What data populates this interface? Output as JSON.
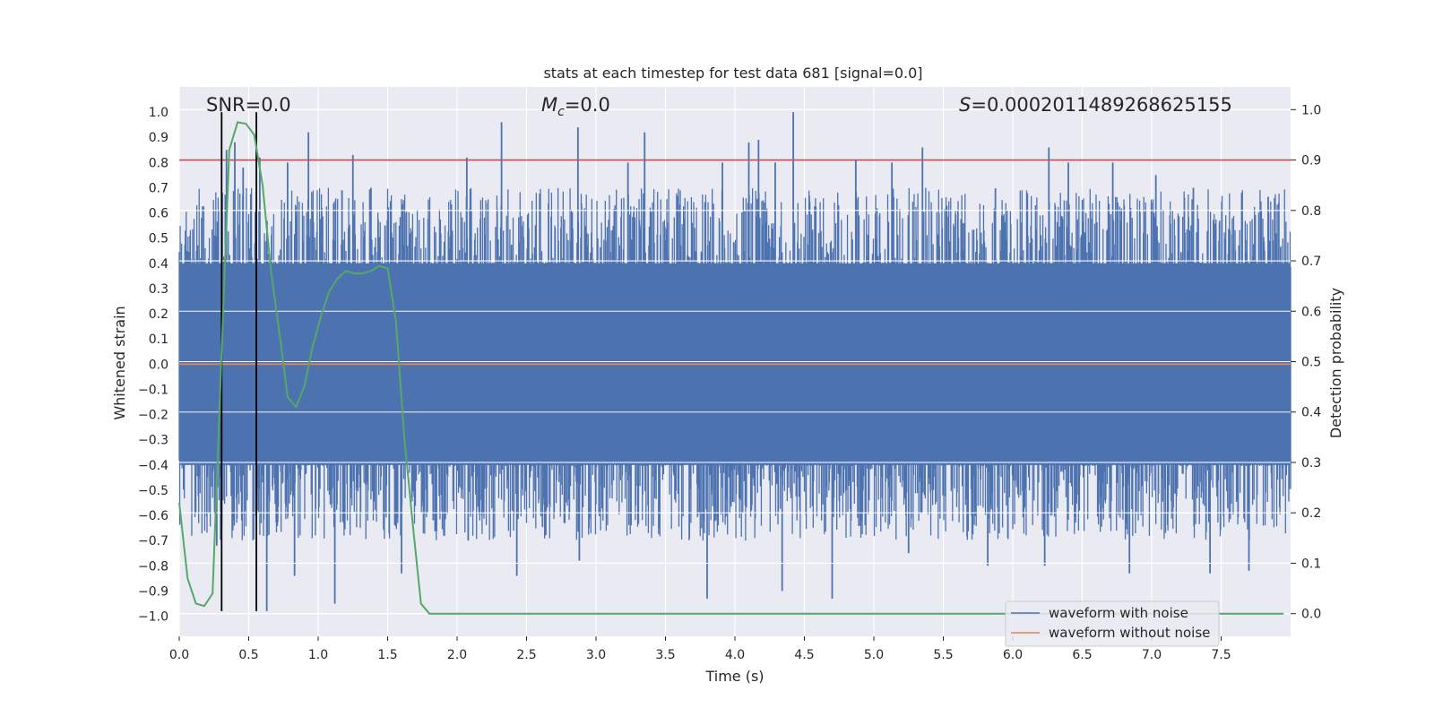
{
  "chart_data": {
    "type": "line",
    "title": "stats at each timestep for test data 681 [signal=0.0]",
    "xlabel": "Time (s)",
    "ylabel_left": "Whitened strain",
    "ylabel_right": "Detection probability",
    "xlim": [
      0.0,
      8.0
    ],
    "ylim_left": [
      -1.08,
      1.1
    ],
    "ylim_right": [
      -0.045,
      1.045
    ],
    "x_ticks": [
      0.0,
      0.5,
      1.0,
      1.5,
      2.0,
      2.5,
      3.0,
      3.5,
      4.0,
      4.5,
      5.0,
      5.5,
      6.0,
      6.5,
      7.0,
      7.5
    ],
    "x_tick_labels": [
      "0.0",
      "0.5",
      "1.0",
      "1.5",
      "2.0",
      "2.5",
      "3.0",
      "3.5",
      "4.0",
      "4.5",
      "5.0",
      "5.5",
      "6.0",
      "6.5",
      "7.0",
      "7.5"
    ],
    "y_ticks_left": [
      -1.0,
      -0.9,
      -0.8,
      -0.7,
      -0.6,
      -0.5,
      -0.4,
      -0.3,
      -0.2,
      -0.1,
      0.0,
      0.1,
      0.2,
      0.3,
      0.4,
      0.5,
      0.6,
      0.7,
      0.8,
      0.9,
      1.0
    ],
    "y_tick_labels_left": [
      "−1.0",
      "−0.9",
      "−0.8",
      "−0.7",
      "−0.6",
      "−0.5",
      "−0.4",
      "−0.3",
      "−0.2",
      "−0.1",
      "0.0",
      "0.1",
      "0.2",
      "0.3",
      "0.4",
      "0.5",
      "0.6",
      "0.7",
      "0.8",
      "0.9",
      "1.0"
    ],
    "y_ticks_right": [
      0.0,
      0.1,
      0.2,
      0.3,
      0.4,
      0.5,
      0.6,
      0.7,
      0.8,
      0.9,
      1.0
    ],
    "y_tick_labels_right": [
      "0.0",
      "0.1",
      "0.2",
      "0.3",
      "0.4",
      "0.5",
      "0.6",
      "0.7",
      "0.8",
      "0.9",
      "1.0"
    ],
    "annotations": {
      "snr": "SNR=0.0",
      "mc_symbol": "M",
      "mc_subscript": "c",
      "mc_value": "=0.0",
      "s_symbol": "S",
      "s_value": "=0.0002011489268625155"
    },
    "series": [
      {
        "name": "waveform with noise",
        "color": "#4c72b0",
        "description": "dense noise; envelope approx ±0.4 with spikes to ±1.0",
        "envelope_abs": 0.4,
        "spikes": [
          {
            "x": 0.31,
            "y": 0.68
          },
          {
            "x": 0.34,
            "y": 0.85
          },
          {
            "x": 0.4,
            "y": 0.88
          },
          {
            "x": 0.46,
            "y": 0.78
          },
          {
            "x": 0.58,
            "y": 0.82
          },
          {
            "x": 0.78,
            "y": 0.8
          },
          {
            "x": 0.93,
            "y": 0.92
          },
          {
            "x": 1.25,
            "y": 0.83
          },
          {
            "x": 1.38,
            "y": 0.7
          },
          {
            "x": 2.07,
            "y": 0.82
          },
          {
            "x": 2.32,
            "y": 0.96
          },
          {
            "x": 2.87,
            "y": 0.94
          },
          {
            "x": 3.23,
            "y": 0.8
          },
          {
            "x": 3.35,
            "y": 0.92
          },
          {
            "x": 3.91,
            "y": 0.8
          },
          {
            "x": 4.1,
            "y": 0.88
          },
          {
            "x": 4.17,
            "y": 0.89
          },
          {
            "x": 4.29,
            "y": 0.8
          },
          {
            "x": 4.42,
            "y": 1.0
          },
          {
            "x": 4.87,
            "y": 0.81
          },
          {
            "x": 5.13,
            "y": 0.8
          },
          {
            "x": 5.35,
            "y": 0.86
          },
          {
            "x": 6.26,
            "y": 0.86
          },
          {
            "x": 6.4,
            "y": 0.8
          },
          {
            "x": 6.72,
            "y": 0.8
          },
          {
            "x": 7.03,
            "y": 0.75
          },
          {
            "x": 7.3,
            "y": 0.7
          },
          {
            "x": 0.27,
            "y": -0.72
          },
          {
            "x": 0.45,
            "y": -0.62
          },
          {
            "x": 0.63,
            "y": -0.98
          },
          {
            "x": 0.83,
            "y": -0.84
          },
          {
            "x": 1.12,
            "y": -0.95
          },
          {
            "x": 1.6,
            "y": -0.83
          },
          {
            "x": 2.08,
            "y": -0.7
          },
          {
            "x": 2.43,
            "y": -0.84
          },
          {
            "x": 2.88,
            "y": -0.78
          },
          {
            "x": 3.8,
            "y": -0.93
          },
          {
            "x": 4.34,
            "y": -0.9
          },
          {
            "x": 4.7,
            "y": -0.93
          },
          {
            "x": 5.25,
            "y": -0.75
          },
          {
            "x": 5.82,
            "y": -0.8
          },
          {
            "x": 6.23,
            "y": -0.8
          },
          {
            "x": 6.84,
            "y": -0.83
          },
          {
            "x": 7.42,
            "y": -0.83
          },
          {
            "x": 7.7,
            "y": -0.82
          }
        ]
      },
      {
        "name": "waveform without noise",
        "color": "#dd8452",
        "x": [
          0.0,
          8.0
        ],
        "y": [
          0.0,
          0.0
        ]
      },
      {
        "name": "detection probability",
        "color": "#55a868",
        "axis": "right",
        "x": [
          0.0,
          0.06,
          0.12,
          0.18,
          0.24,
          0.3,
          0.36,
          0.42,
          0.48,
          0.54,
          0.6,
          0.66,
          0.72,
          0.78,
          0.84,
          0.9,
          0.96,
          1.02,
          1.08,
          1.14,
          1.2,
          1.26,
          1.32,
          1.38,
          1.44,
          1.5,
          1.56,
          1.62,
          1.68,
          1.74,
          1.8,
          7.95
        ],
        "y": [
          0.22,
          0.07,
          0.02,
          0.015,
          0.04,
          0.48,
          0.92,
          0.975,
          0.972,
          0.95,
          0.85,
          0.68,
          0.56,
          0.43,
          0.41,
          0.45,
          0.53,
          0.59,
          0.64,
          0.665,
          0.68,
          0.675,
          0.675,
          0.68,
          0.69,
          0.685,
          0.58,
          0.35,
          0.18,
          0.02,
          0.0,
          0.0
        ]
      }
    ],
    "horizontal_lines": [
      {
        "name": "threshold",
        "color": "#c44e52",
        "axis": "right",
        "y": 0.9
      }
    ],
    "vertical_lines": [
      {
        "name": "marker-1",
        "color": "#000000",
        "x": 0.305,
        "y_from": -0.98,
        "y_to": 1.0
      },
      {
        "name": "marker-2",
        "color": "#000000",
        "x": 0.555,
        "y_from": -0.98,
        "y_to": 1.0
      }
    ],
    "legend": {
      "position": "lower-right",
      "entries": [
        {
          "label": "waveform with noise",
          "color": "#4c72b0"
        },
        {
          "label": "waveform without noise",
          "color": "#dd8452"
        }
      ]
    }
  }
}
